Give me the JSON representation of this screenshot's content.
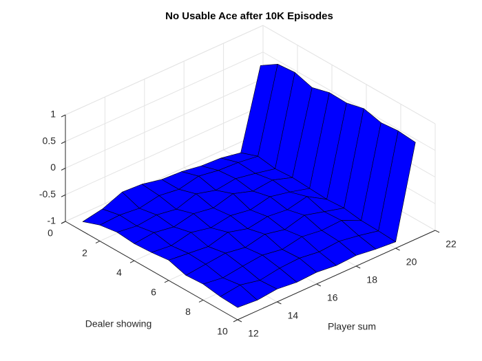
{
  "chart_data": {
    "type": "surface",
    "title": "No Usable Ace after 10K Episodes",
    "xlabel": "Dealer showing",
    "ylabel": "Player sum",
    "x": [
      1,
      2,
      3,
      4,
      5,
      6,
      7,
      8,
      9,
      10
    ],
    "y": [
      12,
      13,
      14,
      15,
      16,
      17,
      18,
      19,
      20,
      21
    ],
    "z": [
      [
        -0.82,
        -0.75,
        -0.6,
        -0.62,
        -0.7,
        -0.72,
        -0.78,
        -0.8,
        -0.87,
        0.6
      ],
      [
        -0.7,
        -0.68,
        -0.72,
        -0.65,
        -0.7,
        -0.62,
        -0.68,
        -0.7,
        -0.75,
        0.81
      ],
      [
        -0.65,
        -0.7,
        -0.66,
        -0.72,
        -0.6,
        -0.7,
        -0.65,
        -0.72,
        -0.8,
        0.84
      ],
      [
        -0.68,
        -0.64,
        -0.7,
        -0.62,
        -0.68,
        -0.58,
        -0.7,
        -0.66,
        -0.78,
        0.74
      ],
      [
        -0.66,
        -0.7,
        -0.62,
        -0.7,
        -0.64,
        -0.7,
        -0.62,
        -0.7,
        -0.8,
        0.83
      ],
      [
        -0.62,
        -0.66,
        -0.7,
        -0.6,
        -0.7,
        -0.64,
        -0.68,
        -0.6,
        -0.82,
        0.82
      ],
      [
        -0.72,
        -0.68,
        -0.64,
        -0.7,
        -0.62,
        -0.7,
        -0.6,
        -0.7,
        -0.8,
        0.9
      ],
      [
        -0.7,
        -0.75,
        -0.7,
        -0.66,
        -0.72,
        -0.65,
        -0.7,
        -0.68,
        -0.85,
        0.82
      ],
      [
        -0.75,
        -0.7,
        -0.78,
        -0.72,
        -0.7,
        -0.75,
        -0.72,
        -0.78,
        -0.86,
        0.85
      ],
      [
        -0.77,
        -0.8,
        -0.76,
        -0.8,
        -0.78,
        -0.82,
        -0.8,
        -0.85,
        -0.88,
        0.82
      ]
    ],
    "color": "#0000ff",
    "xlim": [
      0,
      10
    ],
    "xticks": [
      0,
      2,
      4,
      6,
      8,
      10
    ],
    "ylim": [
      12,
      22
    ],
    "yticks": [
      12,
      14,
      16,
      18,
      20,
      22
    ],
    "zlim": [
      -1,
      1
    ],
    "zticks": [
      -1,
      -0.5,
      0,
      0.5,
      1
    ],
    "grid": true
  }
}
